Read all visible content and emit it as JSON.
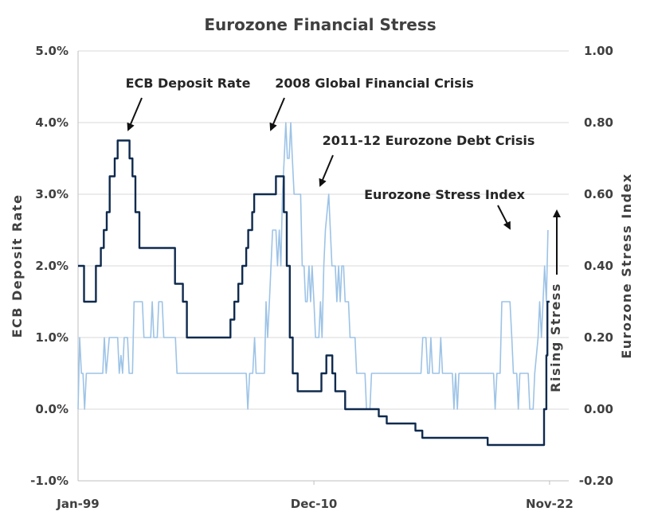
{
  "chart_data": {
    "type": "line",
    "title": "Eurozone Financial Stress",
    "ylabel_left": "ECB  Deposit  Rate",
    "ylabel_right": "Eurozone  Stress  Index",
    "side_label": "Rising  Stress",
    "ylim_left": [
      -1.0,
      5.0
    ],
    "ylim_right": [
      -0.2,
      1.0
    ],
    "xlim": [
      1999.0,
      2023.8
    ],
    "left_ticks": [
      {
        "value": 5.0,
        "label": "5.0%"
      },
      {
        "value": 4.0,
        "label": "4.0%"
      },
      {
        "value": 3.0,
        "label": "3.0%"
      },
      {
        "value": 2.0,
        "label": "2.0%"
      },
      {
        "value": 1.0,
        "label": "1.0%"
      },
      {
        "value": 0.0,
        "label": "0.0%"
      },
      {
        "value": -1.0,
        "label": "-1.0%"
      }
    ],
    "right_ticks": [
      {
        "value": 1.0,
        "label": "1.00"
      },
      {
        "value": 0.8,
        "label": "0.80"
      },
      {
        "value": 0.6,
        "label": "0.60"
      },
      {
        "value": 0.4,
        "label": "0.40"
      },
      {
        "value": 0.2,
        "label": "0.20"
      },
      {
        "value": 0.0,
        "label": "0.00"
      },
      {
        "value": -0.2,
        "label": "-0.20"
      }
    ],
    "x_ticks": [
      {
        "value": 1999.0,
        "label": "Jan-99"
      },
      {
        "value": 2010.92,
        "label": "Dec-10"
      },
      {
        "value": 2022.83,
        "label": "Nov-22"
      }
    ],
    "grid": true,
    "series": [
      {
        "name": "ECB Deposit Rate",
        "axis": "left",
        "color": "#0f2a4e",
        "points": [
          [
            1999.0,
            2.0
          ],
          [
            1999.3,
            2.0
          ],
          [
            1999.3,
            1.5
          ],
          [
            1999.9,
            1.5
          ],
          [
            1999.9,
            2.0
          ],
          [
            2000.15,
            2.0
          ],
          [
            2000.15,
            2.25
          ],
          [
            2000.3,
            2.25
          ],
          [
            2000.3,
            2.5
          ],
          [
            2000.45,
            2.5
          ],
          [
            2000.45,
            2.75
          ],
          [
            2000.6,
            2.75
          ],
          [
            2000.6,
            3.25
          ],
          [
            2000.85,
            3.25
          ],
          [
            2000.85,
            3.5
          ],
          [
            2001.0,
            3.5
          ],
          [
            2001.0,
            3.75
          ],
          [
            2001.6,
            3.75
          ],
          [
            2001.6,
            3.5
          ],
          [
            2001.75,
            3.5
          ],
          [
            2001.75,
            3.25
          ],
          [
            2001.9,
            3.25
          ],
          [
            2001.9,
            2.75
          ],
          [
            2002.1,
            2.75
          ],
          [
            2002.1,
            2.25
          ],
          [
            2003.9,
            2.25
          ],
          [
            2003.9,
            1.75
          ],
          [
            2004.3,
            1.75
          ],
          [
            2004.3,
            1.5
          ],
          [
            2004.5,
            1.5
          ],
          [
            2004.5,
            1.0
          ],
          [
            2006.7,
            1.0
          ],
          [
            2006.7,
            1.25
          ],
          [
            2006.9,
            1.25
          ],
          [
            2006.9,
            1.5
          ],
          [
            2007.1,
            1.5
          ],
          [
            2007.1,
            1.75
          ],
          [
            2007.3,
            1.75
          ],
          [
            2007.3,
            2.0
          ],
          [
            2007.5,
            2.0
          ],
          [
            2007.5,
            2.25
          ],
          [
            2007.6,
            2.25
          ],
          [
            2007.6,
            2.5
          ],
          [
            2007.8,
            2.5
          ],
          [
            2007.8,
            2.75
          ],
          [
            2007.9,
            2.75
          ],
          [
            2007.9,
            3.0
          ],
          [
            2009.0,
            3.0
          ],
          [
            2009.0,
            3.25
          ],
          [
            2009.4,
            3.25
          ],
          [
            2009.4,
            2.75
          ],
          [
            2009.55,
            2.75
          ],
          [
            2009.55,
            2.0
          ],
          [
            2009.7,
            2.0
          ],
          [
            2009.7,
            1.0
          ],
          [
            2009.85,
            1.0
          ],
          [
            2009.85,
            0.5
          ],
          [
            2010.1,
            0.5
          ],
          [
            2010.1,
            0.25
          ],
          [
            2011.3,
            0.25
          ],
          [
            2011.3,
            0.5
          ],
          [
            2011.55,
            0.5
          ],
          [
            2011.55,
            0.75
          ],
          [
            2011.85,
            0.75
          ],
          [
            2011.85,
            0.5
          ],
          [
            2012.0,
            0.5
          ],
          [
            2012.0,
            0.25
          ],
          [
            2012.5,
            0.25
          ],
          [
            2012.5,
            0.0
          ],
          [
            2014.2,
            0.0
          ],
          [
            2014.2,
            -0.1
          ],
          [
            2014.6,
            -0.1
          ],
          [
            2014.6,
            -0.2
          ],
          [
            2016.05,
            -0.2
          ],
          [
            2016.05,
            -0.3
          ],
          [
            2016.4,
            -0.3
          ],
          [
            2016.4,
            -0.4
          ],
          [
            2019.7,
            -0.4
          ],
          [
            2019.7,
            -0.5
          ],
          [
            2022.55,
            -0.5
          ],
          [
            2022.55,
            0.0
          ],
          [
            2022.67,
            0.0
          ],
          [
            2022.67,
            0.75
          ],
          [
            2022.72,
            0.75
          ],
          [
            2022.72,
            1.5
          ],
          [
            2022.83,
            1.5
          ]
        ]
      },
      {
        "name": "Eurozone Stress Index",
        "axis": "right",
        "color": "#9dc3e6",
        "points": [
          [
            1999.0,
            0.0
          ],
          [
            1999.08,
            0.2
          ],
          [
            1999.17,
            0.1
          ],
          [
            1999.25,
            0.1
          ],
          [
            1999.33,
            0.0
          ],
          [
            1999.42,
            0.1
          ],
          [
            2000.25,
            0.1
          ],
          [
            2000.33,
            0.2
          ],
          [
            2000.42,
            0.1
          ],
          [
            2000.5,
            0.15
          ],
          [
            2000.58,
            0.2
          ],
          [
            2001.0,
            0.2
          ],
          [
            2001.08,
            0.1
          ],
          [
            2001.17,
            0.15
          ],
          [
            2001.25,
            0.1
          ],
          [
            2001.33,
            0.2
          ],
          [
            2001.5,
            0.2
          ],
          [
            2001.58,
            0.1
          ],
          [
            2001.75,
            0.1
          ],
          [
            2001.83,
            0.3
          ],
          [
            2002.25,
            0.3
          ],
          [
            2002.33,
            0.2
          ],
          [
            2002.67,
            0.2
          ],
          [
            2002.75,
            0.3
          ],
          [
            2002.83,
            0.2
          ],
          [
            2003.0,
            0.2
          ],
          [
            2003.08,
            0.3
          ],
          [
            2003.25,
            0.3
          ],
          [
            2003.33,
            0.2
          ],
          [
            2003.92,
            0.2
          ],
          [
            2004.0,
            0.1
          ],
          [
            2007.5,
            0.1
          ],
          [
            2007.58,
            0.0
          ],
          [
            2007.67,
            0.1
          ],
          [
            2007.83,
            0.1
          ],
          [
            2007.92,
            0.2
          ],
          [
            2008.0,
            0.1
          ],
          [
            2008.42,
            0.1
          ],
          [
            2008.5,
            0.3
          ],
          [
            2008.58,
            0.2
          ],
          [
            2008.67,
            0.3
          ],
          [
            2008.75,
            0.4
          ],
          [
            2008.83,
            0.5
          ],
          [
            2009.0,
            0.5
          ],
          [
            2009.08,
            0.4
          ],
          [
            2009.17,
            0.5
          ],
          [
            2009.25,
            0.4
          ],
          [
            2009.33,
            0.6
          ],
          [
            2009.42,
            0.7
          ],
          [
            2009.5,
            0.8
          ],
          [
            2009.58,
            0.7
          ],
          [
            2009.67,
            0.7
          ],
          [
            2009.75,
            0.8
          ],
          [
            2009.83,
            0.7
          ],
          [
            2009.92,
            0.6
          ],
          [
            2010.25,
            0.6
          ],
          [
            2010.33,
            0.4
          ],
          [
            2010.42,
            0.4
          ],
          [
            2010.5,
            0.3
          ],
          [
            2010.58,
            0.3
          ],
          [
            2010.67,
            0.4
          ],
          [
            2010.75,
            0.3
          ],
          [
            2010.83,
            0.4
          ],
          [
            2010.92,
            0.3
          ],
          [
            2011.0,
            0.2
          ],
          [
            2011.17,
            0.2
          ],
          [
            2011.25,
            0.3
          ],
          [
            2011.33,
            0.2
          ],
          [
            2011.42,
            0.4
          ],
          [
            2011.5,
            0.5
          ],
          [
            2011.67,
            0.6
          ],
          [
            2011.75,
            0.5
          ],
          [
            2011.83,
            0.4
          ],
          [
            2012.0,
            0.4
          ],
          [
            2012.08,
            0.3
          ],
          [
            2012.17,
            0.4
          ],
          [
            2012.25,
            0.3
          ],
          [
            2012.33,
            0.4
          ],
          [
            2012.42,
            0.4
          ],
          [
            2012.5,
            0.3
          ],
          [
            2012.67,
            0.3
          ],
          [
            2012.75,
            0.2
          ],
          [
            2013.0,
            0.2
          ],
          [
            2013.08,
            0.1
          ],
          [
            2013.5,
            0.1
          ],
          [
            2013.58,
            0.0
          ],
          [
            2013.75,
            0.0
          ],
          [
            2013.83,
            0.1
          ],
          [
            2016.33,
            0.1
          ],
          [
            2016.42,
            0.2
          ],
          [
            2016.58,
            0.2
          ],
          [
            2016.67,
            0.1
          ],
          [
            2016.75,
            0.1
          ],
          [
            2016.83,
            0.2
          ],
          [
            2016.92,
            0.1
          ],
          [
            2017.25,
            0.1
          ],
          [
            2017.33,
            0.2
          ],
          [
            2017.42,
            0.1
          ],
          [
            2017.92,
            0.1
          ],
          [
            2018.0,
            0.0
          ],
          [
            2018.08,
            0.1
          ],
          [
            2018.17,
            0.0
          ],
          [
            2018.25,
            0.1
          ],
          [
            2020.0,
            0.1
          ],
          [
            2020.08,
            0.0
          ],
          [
            2020.17,
            0.1
          ],
          [
            2020.33,
            0.1
          ],
          [
            2020.42,
            0.3
          ],
          [
            2020.83,
            0.3
          ],
          [
            2020.92,
            0.2
          ],
          [
            2021.0,
            0.1
          ],
          [
            2021.17,
            0.1
          ],
          [
            2021.25,
            0.0
          ],
          [
            2021.33,
            0.1
          ],
          [
            2021.75,
            0.1
          ],
          [
            2021.83,
            0.0
          ],
          [
            2022.0,
            0.0
          ],
          [
            2022.08,
            0.1
          ],
          [
            2022.25,
            0.2
          ],
          [
            2022.33,
            0.3
          ],
          [
            2022.42,
            0.2
          ],
          [
            2022.5,
            0.3
          ],
          [
            2022.58,
            0.4
          ],
          [
            2022.67,
            0.3
          ],
          [
            2022.75,
            0.5
          ]
        ]
      }
    ],
    "annotations": [
      {
        "text": "ECB Deposit Rate",
        "series": "ECB Deposit Rate",
        "at": [
          2001.0,
          3.75
        ]
      },
      {
        "text": "2008 Global Financial Crisis",
        "series": "Eurozone Stress Index",
        "at": [
          2009.92,
          0.8
        ]
      },
      {
        "text": "2011-12 Eurozone Debt Crisis",
        "series": "Eurozone Stress Index",
        "at": [
          2011.67,
          0.6
        ]
      },
      {
        "text": "Eurozone Stress Index",
        "series": "Eurozone Stress Index",
        "at": [
          2022.75,
          0.5
        ]
      }
    ]
  }
}
